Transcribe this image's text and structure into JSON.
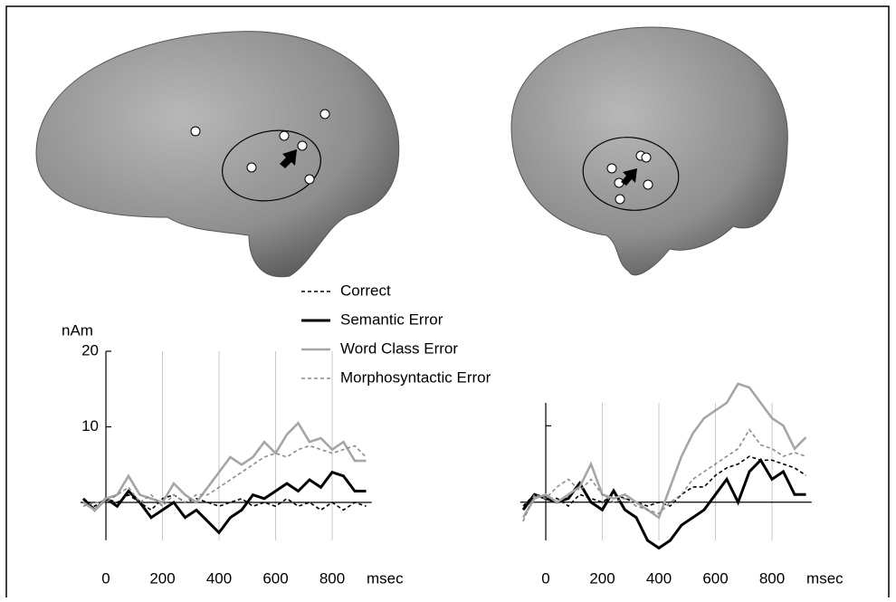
{
  "chart_data": [
    {
      "type": "line",
      "ylabel": "nAm",
      "xlabel": "msec",
      "x": [
        -80,
        -40,
        0,
        40,
        80,
        120,
        160,
        200,
        240,
        280,
        320,
        360,
        400,
        440,
        480,
        520,
        560,
        600,
        640,
        680,
        720,
        760,
        800,
        840,
        880,
        920
      ],
      "xlim": [
        -90,
        940
      ],
      "xticks": [
        0,
        200,
        400,
        600,
        800
      ],
      "ylim": [
        -5,
        20
      ],
      "yticks": [
        10,
        20
      ],
      "ytick_labels": true,
      "grid": true,
      "series": [
        {
          "name": "Correct",
          "color": "#000000",
          "dash": true,
          "values": [
            0.5,
            -0.5,
            0.5,
            0,
            1,
            0,
            -1,
            0.5,
            1,
            0,
            0.5,
            0,
            -0.5,
            0,
            0.5,
            -0.5,
            0,
            -0.5,
            0.5,
            -0.5,
            0,
            -1,
            0,
            -1,
            0,
            -0.5
          ]
        },
        {
          "name": "Semantic Error",
          "color": "#000000",
          "dash": false,
          "values": [
            0.5,
            -1,
            0.5,
            -0.5,
            1.5,
            0,
            -2,
            -1,
            0,
            -2,
            -1,
            -2.5,
            -4,
            -2,
            -1,
            1,
            0.5,
            1.5,
            2.5,
            1.5,
            3,
            2,
            4,
            3.5,
            1.5,
            1.5
          ]
        },
        {
          "name": "Word Class Error",
          "color": "#a6a6a6",
          "dash": false,
          "values": [
            0,
            -1,
            0.5,
            1,
            3.5,
            1,
            0.5,
            0,
            2.5,
            1,
            0,
            2,
            4,
            6,
            5,
            6,
            8,
            6.5,
            9,
            10.5,
            8,
            8.5,
            7,
            8,
            5.5,
            5.5
          ]
        },
        {
          "name": "Morphosyntactic Error",
          "color": "#8c8c8c",
          "dash": true,
          "values": [
            -0.5,
            0,
            0,
            1,
            2,
            0,
            1,
            -0.5,
            1,
            0,
            1,
            1,
            2,
            3,
            4,
            5,
            6,
            6.5,
            6,
            7,
            7.5,
            7,
            6.5,
            7,
            7.5,
            6
          ]
        }
      ]
    },
    {
      "type": "line",
      "xlabel": "msec",
      "x": [
        -80,
        -40,
        0,
        40,
        80,
        120,
        160,
        200,
        240,
        280,
        320,
        360,
        400,
        440,
        480,
        520,
        560,
        600,
        640,
        680,
        720,
        760,
        800,
        840,
        880,
        920
      ],
      "xlim": [
        -90,
        940
      ],
      "xticks": [
        0,
        200,
        400,
        600,
        800
      ],
      "ylim": [
        -5,
        13
      ],
      "yticks": [
        10
      ],
      "ytick_labels": false,
      "grid": true,
      "series": [
        {
          "color": "#000000",
          "dash": true,
          "values": [
            -0.5,
            1,
            0.5,
            0.5,
            -0.5,
            1,
            0.5,
            0,
            1,
            0.5,
            0,
            -0.5,
            0,
            -0.5,
            1,
            2,
            2,
            3.5,
            4.5,
            5,
            6,
            5.5,
            5.5,
            5,
            4.5,
            3.5
          ]
        },
        {
          "color": "#000000",
          "dash": false,
          "values": [
            -1,
            1,
            0.5,
            0,
            0.5,
            2.5,
            0,
            -1,
            1.5,
            -1,
            -2,
            -5,
            -6,
            -5,
            -3,
            -2,
            -1,
            1,
            3,
            0,
            4,
            5.5,
            3,
            4,
            1,
            1
          ]
        },
        {
          "color": "#a6a6a6",
          "dash": false,
          "values": [
            -2,
            0.5,
            1,
            0,
            1,
            2,
            5,
            1,
            0.5,
            1,
            0,
            -1,
            -2,
            2,
            6,
            9,
            11,
            12,
            13,
            15.5,
            15,
            13,
            11,
            10,
            7,
            8.5
          ]
        },
        {
          "color": "#8c8c8c",
          "dash": true,
          "values": [
            -2.5,
            1,
            0.5,
            2,
            3,
            1.5,
            3,
            1,
            0,
            0.5,
            -0.5,
            -1,
            -1.5,
            0,
            1,
            3,
            4,
            5,
            6,
            7,
            9.5,
            7.5,
            7,
            6,
            6.5,
            6
          ]
        }
      ]
    }
  ]
}
